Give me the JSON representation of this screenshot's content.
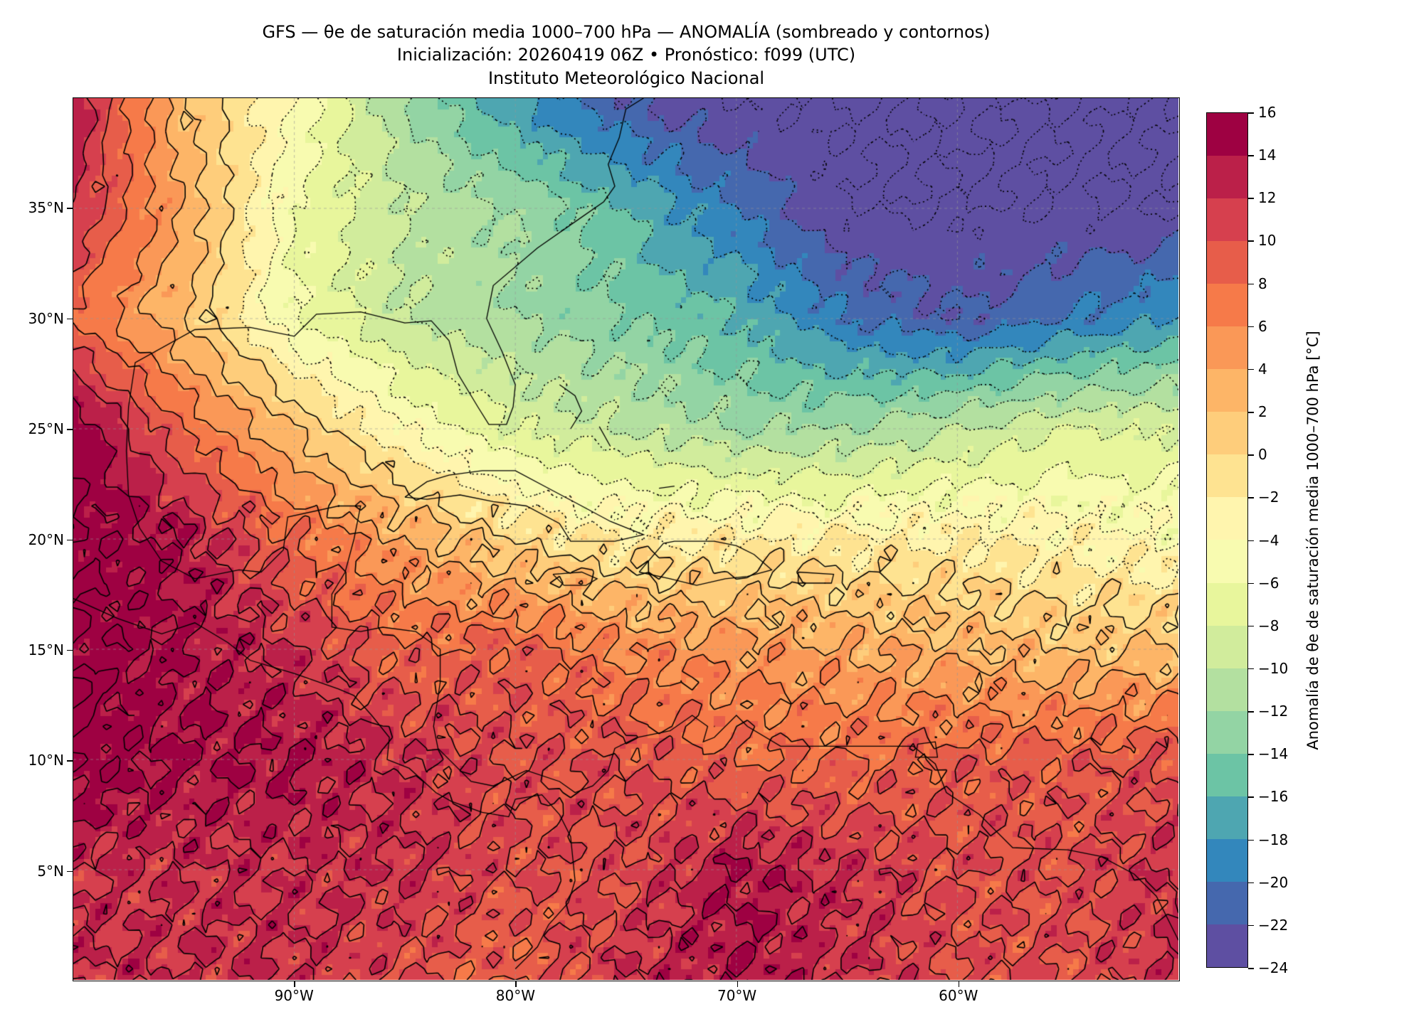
{
  "title": {
    "line1": "GFS — θe de saturación media 1000–700 hPa — ANOMALÍA (sombreado y contornos)",
    "line2": "Inicialización: 20260419 06Z   •   Pronóstico: f099 (UTC)",
    "line3": "Instituto Meteorológico Nacional"
  },
  "colorbar": {
    "label": "Anomalía de θe de saturación media 1000–700 hPa [°C]",
    "ticks": [
      "16",
      "14",
      "12",
      "10",
      "8",
      "6",
      "4",
      "2",
      "0",
      "−2",
      "−4",
      "−6",
      "−8",
      "−10",
      "−12",
      "−14",
      "−16",
      "−18",
      "−20",
      "−22",
      "−24"
    ],
    "colors": [
      "#9e0142",
      "#bb2049",
      "#d6404e",
      "#e75d4a",
      "#f67a49",
      "#fa9857",
      "#fdb567",
      "#fecd7b",
      "#fee391",
      "#fff5ae",
      "#f8fbb0",
      "#e8f69c",
      "#d1ec9c",
      "#b3e0a0",
      "#93d4a4",
      "#6cc4a5",
      "#4ea6b1",
      "#3387bc",
      "#4568ae",
      "#5e4fa2"
    ]
  },
  "axes": {
    "x_ticks": [
      {
        "label": "90°W",
        "lon": -90
      },
      {
        "label": "80°W",
        "lon": -80
      },
      {
        "label": "70°W",
        "lon": -70
      },
      {
        "label": "60°W",
        "lon": -60
      }
    ],
    "y_ticks": [
      {
        "label": "35°N",
        "lat": 35
      },
      {
        "label": "30°N",
        "lat": 30
      },
      {
        "label": "25°N",
        "lat": 25
      },
      {
        "label": "20°N",
        "lat": 20
      },
      {
        "label": "15°N",
        "lat": 15
      },
      {
        "label": "10°N",
        "lat": 10
      },
      {
        "label": "5°N",
        "lat": 5
      }
    ]
  },
  "chart_data": {
    "type": "heatmap",
    "title": "GFS — θe de saturación media 1000–700 hPa — ANOMALÍA",
    "lon_range": [
      -100,
      -50
    ],
    "lat_range": [
      0,
      40
    ],
    "levels": [
      -24,
      16,
      2
    ],
    "grid_lons": [
      -100,
      -95,
      -90,
      -85,
      -80,
      -75,
      -70,
      -65,
      -60,
      -55,
      -50
    ],
    "grid_lats": [
      40,
      35,
      30,
      25,
      20,
      15,
      10,
      5,
      0
    ],
    "values": [
      [
        14,
        2,
        -4,
        -12,
        -18,
        -22,
        -24,
        -24,
        -24,
        -24,
        -24
      ],
      [
        12,
        4,
        -6,
        -10,
        -12,
        -16,
        -20,
        -24,
        -24,
        -24,
        -24
      ],
      [
        8,
        2,
        -6,
        -10,
        -12,
        -14,
        -16,
        -20,
        -22,
        -20,
        -18
      ],
      [
        16,
        8,
        2,
        -4,
        -8,
        -10,
        -12,
        -12,
        -10,
        -8,
        -8
      ],
      [
        16,
        14,
        8,
        4,
        0,
        -2,
        -2,
        -2,
        -2,
        -3,
        -4
      ],
      [
        16,
        14,
        12,
        8,
        9,
        6,
        5,
        4,
        3,
        2,
        2
      ],
      [
        16,
        14,
        14,
        12,
        10,
        10,
        8,
        8,
        9,
        9,
        10
      ],
      [
        12,
        12,
        12,
        12,
        10,
        10,
        14,
        12,
        10,
        10,
        12
      ],
      [
        12,
        12,
        12,
        10,
        8,
        12,
        14,
        12,
        10,
        10,
        12
      ]
    ],
    "units": "°C"
  }
}
